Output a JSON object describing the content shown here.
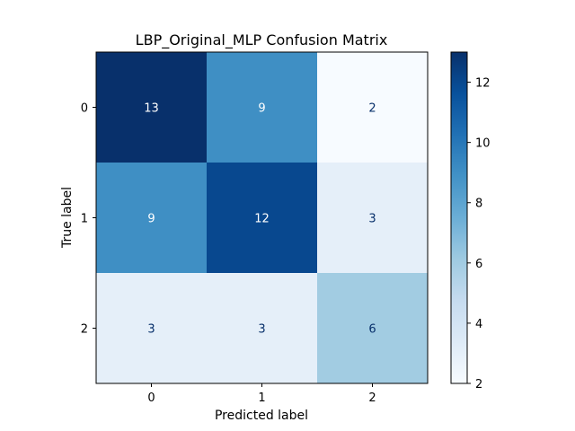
{
  "chart_data": {
    "type": "heatmap",
    "title": "LBP_Original_MLP Confusion Matrix",
    "xlabel": "Predicted label",
    "ylabel": "True label",
    "x_categories": [
      "0",
      "1",
      "2"
    ],
    "y_categories": [
      "0",
      "1",
      "2"
    ],
    "values": [
      [
        13,
        9,
        2
      ],
      [
        9,
        12,
        3
      ],
      [
        3,
        3,
        6
      ]
    ],
    "colormap": "Blues",
    "colorbar": {
      "range": [
        2,
        13
      ],
      "ticks": [
        "2",
        "4",
        "6",
        "8",
        "10",
        "12"
      ]
    },
    "colors": {
      "low": "#f7fbff",
      "high": "#08306b",
      "text_light": "#ffffff",
      "text_dark": "#08306b"
    }
  }
}
